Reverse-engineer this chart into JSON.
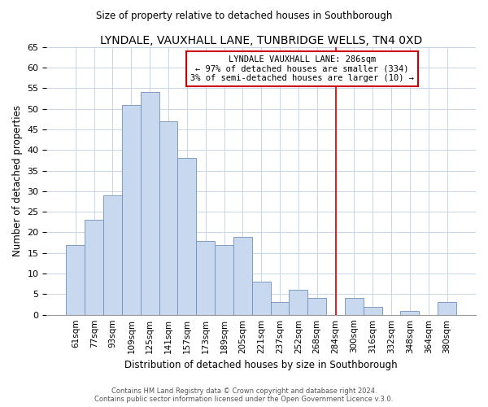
{
  "title": "LYNDALE, VAUXHALL LANE, TUNBRIDGE WELLS, TN4 0XD",
  "subtitle": "Size of property relative to detached houses in Southborough",
  "xlabel": "Distribution of detached houses by size in Southborough",
  "ylabel": "Number of detached properties",
  "bar_labels": [
    "61sqm",
    "77sqm",
    "93sqm",
    "109sqm",
    "125sqm",
    "141sqm",
    "157sqm",
    "173sqm",
    "189sqm",
    "205sqm",
    "221sqm",
    "237sqm",
    "252sqm",
    "268sqm",
    "284sqm",
    "300sqm",
    "316sqm",
    "332sqm",
    "348sqm",
    "364sqm",
    "380sqm"
  ],
  "bar_values": [
    17,
    23,
    29,
    51,
    54,
    47,
    38,
    18,
    17,
    19,
    8,
    3,
    6,
    4,
    0,
    4,
    2,
    0,
    1,
    0,
    3
  ],
  "bar_color": "#c8d8ee",
  "bar_edge_color": "#7090b8",
  "vline_x": 14,
  "vline_color": "#cc0000",
  "annotation_title": "LYNDALE VAUXHALL LANE: 286sqm",
  "annotation_line1": "← 97% of detached houses are smaller (334)",
  "annotation_line2": "3% of semi-detached houses are larger (10) →",
  "annotation_box_color": "#ffffff",
  "annotation_box_edge": "#cc0000",
  "ylim": [
    0,
    65
  ],
  "yticks": [
    0,
    5,
    10,
    15,
    20,
    25,
    30,
    35,
    40,
    45,
    50,
    55,
    60,
    65
  ],
  "footer_line1": "Contains HM Land Registry data © Crown copyright and database right 2024.",
  "footer_line2": "Contains public sector information licensed under the Open Government Licence v.3.0.",
  "bg_color": "#ffffff",
  "grid_color": "#c8d4e8"
}
